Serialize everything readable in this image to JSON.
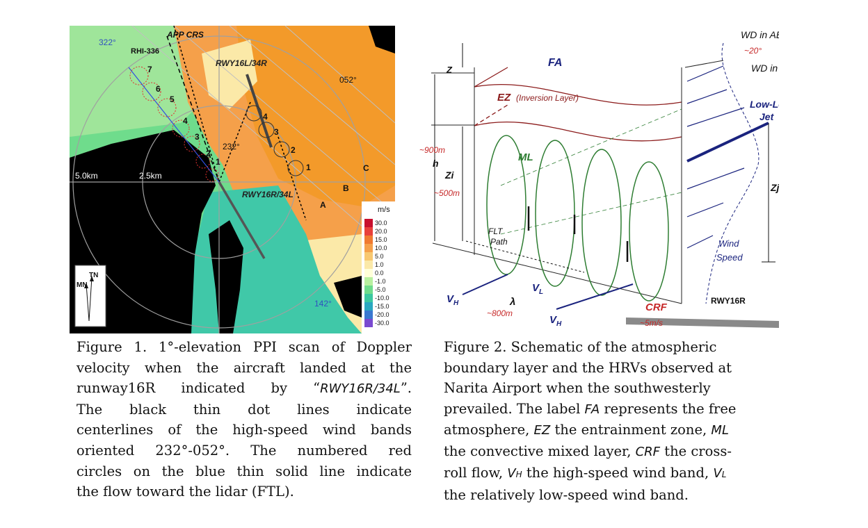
{
  "figure1": {
    "labels": {
      "app_crs": "APP CRS",
      "rhi": "RHI-336",
      "deg322": "322°",
      "deg052": "052°",
      "deg232": "232°",
      "deg142": "142°",
      "rwy_top": "RWY16L/34R",
      "rwy_bottom": "RWY16R/34L",
      "range_5": "5.0km",
      "range_25": "2.5km",
      "letter_a": "A",
      "letter_b": "B",
      "letter_c": "C",
      "tn": "TN",
      "mn": "MN"
    },
    "ftl_circle_numbers": [
      "1",
      "2",
      "3",
      "4",
      "5",
      "6",
      "7"
    ],
    "band_circle_numbers": [
      "1",
      "2",
      "3",
      "4"
    ],
    "colorbar": {
      "unit": "m/s",
      "ticks": [
        "30.0",
        "20.0",
        "15.0",
        "10.0",
        "5.0",
        "1.0",
        "0.0",
        "-1.0",
        "-5.0",
        "-10.0",
        "-15.0",
        "-20.0",
        "-30.0"
      ],
      "colors": [
        "#c8102e",
        "#e8403a",
        "#f07a30",
        "#f5a04a",
        "#f8c870",
        "#fbe9a8",
        "#ffffd8",
        "#b8f0a0",
        "#6fdc8c",
        "#3cc8a0",
        "#2aa8c0",
        "#3a78d0",
        "#7a4ad0"
      ]
    },
    "colors": {
      "receding": "#f39a2a",
      "approaching": "#40c8a8",
      "no_data": "#000000",
      "circle_red": "#e03030",
      "blue_line": "#3050e0"
    }
  },
  "figure2": {
    "labels": {
      "wd_abl": "WD in ABL",
      "wd_fa": "WD in FA",
      "deg20": "~20°",
      "z": "Z",
      "fa": "FA",
      "ez": "EZ",
      "ez_sub": "(Inversion Layer)",
      "low_level": "Low-Level",
      "jet": "Jet",
      "h900": "~900m",
      "h": "h",
      "zi": "Zi",
      "h500": "~500m",
      "ml": "ML",
      "zj": "Zj",
      "flt": "FLT",
      "path": "Path",
      "wind": "Wind",
      "speed": "Speed",
      "vh": "V",
      "vh_sub": "H",
      "vl": "V",
      "vl_sub": "L",
      "lambda": "λ",
      "l800": "~800m",
      "crf": "CRF",
      "crf_speed": "~5m/s",
      "rwy16r": "RWY16R"
    },
    "colors": {
      "navy": "#1a237e",
      "maroon": "#8b1a1a",
      "green": "#2e7d32",
      "red": "#c62828"
    }
  },
  "caption1": {
    "lines": [
      "Figure 1. 1°-elevation PPI scan of Doppler",
      "velocity when the aircraft landed at the",
      "runway16R indicated by “",
      "RWY16R/34L",
      "”.",
      "The black thin dot lines indicate",
      "centerlines of the high-speed wind bands",
      "oriented 232°-052°. The numbered red",
      "circles on the blue thin solid line indicate",
      "the flow toward the lidar (FTL)."
    ]
  },
  "caption2": {
    "l1": "Figure 2. Schematic of the atmospheric",
    "l2": "boundary layer and the HRVs observed at",
    "l3": "Narita Airport when the southwesterly",
    "l4a": "prevailed. The label ",
    "l4b": "FA",
    "l4c": " represents the free",
    "l5a": "atmosphere, ",
    "l5b": "EZ",
    "l5c": " the entrainment zone, ",
    "l5d": "ML",
    "l6a": "the convective mixed layer, ",
    "l6b": "CRF",
    "l6c": " the cross-",
    "l7a": "roll flow, ",
    "l7b": "V",
    "l7c": "H",
    "l7d": " the high-speed wind band, ",
    "l7e": "V",
    "l7f": "L",
    "l8": "the relatively low-speed wind band."
  }
}
